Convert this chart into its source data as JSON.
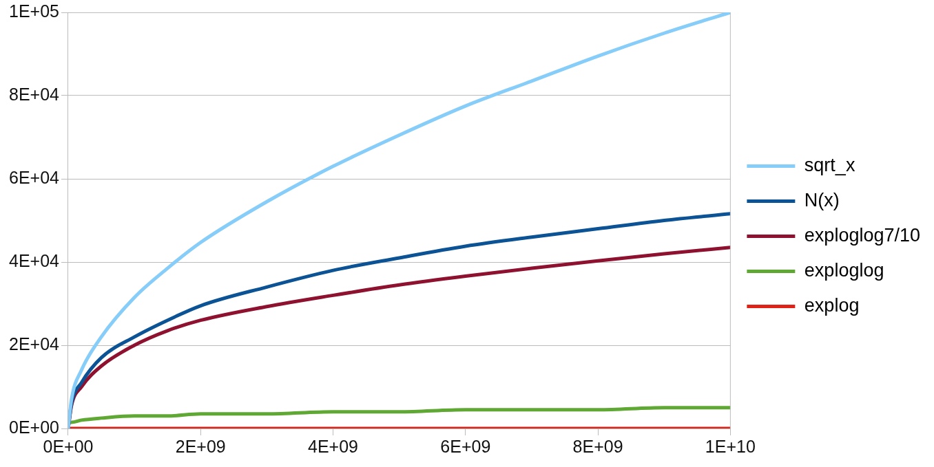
{
  "chart_data": {
    "type": "line",
    "x": [
      0,
      50000000,
      200000000,
      500000000,
      1000000000,
      1500000000,
      2000000000,
      3000000000,
      4000000000,
      5000000000,
      6000000000,
      7000000000,
      8000000000,
      9000000000,
      10000000000
    ],
    "series": [
      {
        "name": "sqrt_x",
        "color": "#87cdf9",
        "values": [
          0,
          7000,
          14000,
          22000,
          31500,
          38500,
          44700,
          54500,
          63000,
          70500,
          77500,
          83500,
          89500,
          95000,
          100000
        ]
      },
      {
        "name": "N(x)",
        "color": "#0b5394",
        "values": [
          0,
          6000,
          11000,
          17000,
          22000,
          26000,
          29500,
          34000,
          38000,
          41000,
          43800,
          46000,
          48000,
          50000,
          51600
        ]
      },
      {
        "name": "exploglog7/10",
        "color": "#8e1230",
        "values": [
          0,
          5500,
          10000,
          15000,
          20000,
          23500,
          26000,
          29300,
          32000,
          34500,
          36600,
          38500,
          40300,
          42000,
          43500
        ]
      },
      {
        "name": "exploglog",
        "color": "#5fa834",
        "values": [
          1500,
          1500,
          2000,
          2500,
          3000,
          3000,
          3500,
          3500,
          4000,
          4000,
          4500,
          4500,
          4500,
          5000,
          5000
        ]
      },
      {
        "name": "explog",
        "color": "#dd2218",
        "values": [
          0,
          0,
          0,
          0,
          0,
          0,
          0,
          0,
          0,
          0,
          0,
          0,
          0,
          0,
          0
        ]
      }
    ],
    "xlim": [
      0,
      10000000000
    ],
    "xticks": [
      {
        "value": 0,
        "label": "0E+00"
      },
      {
        "value": 2000000000,
        "label": "2E+09"
      },
      {
        "value": 4000000000,
        "label": "4E+09"
      },
      {
        "value": 6000000000,
        "label": "6E+09"
      },
      {
        "value": 8000000000,
        "label": "8E+09"
      },
      {
        "value": 10000000000,
        "label": "1E+10"
      }
    ],
    "ylim": [
      0,
      100000
    ],
    "yticks": [
      {
        "value": 0,
        "label": "0E+00"
      },
      {
        "value": 20000,
        "label": "2E+04"
      },
      {
        "value": 40000,
        "label": "4E+04"
      },
      {
        "value": 60000,
        "label": "6E+04"
      },
      {
        "value": 80000,
        "label": "8E+04"
      },
      {
        "value": 100000,
        "label": "1E+05"
      }
    ],
    "grid": "y",
    "legend": "right",
    "marker": "none",
    "line_style": "solid"
  }
}
